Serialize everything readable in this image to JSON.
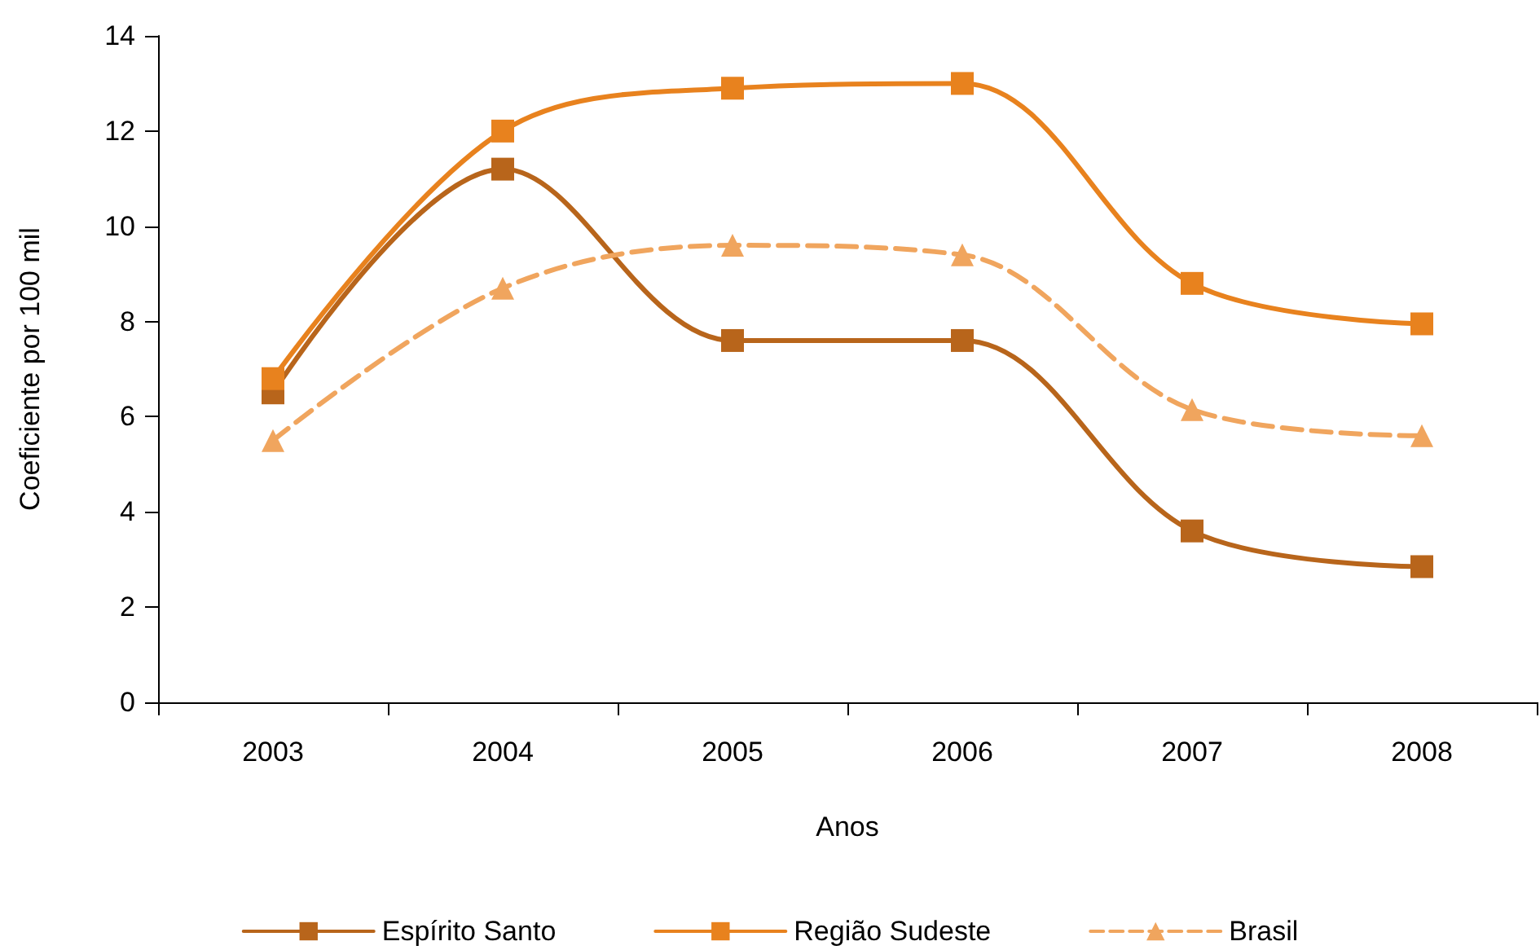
{
  "chart_data": {
    "type": "line",
    "xlabel": "Anos",
    "ylabel": "Coeficiente por 100 mil",
    "categories": [
      "2003",
      "2004",
      "2005",
      "2006",
      "2007",
      "2008"
    ],
    "series": [
      {
        "name": "Espírito Santo",
        "color": "#b8651b",
        "marker": "square",
        "line_style": "solid",
        "values": [
          6.5,
          11.2,
          7.6,
          7.6,
          3.6,
          2.85
        ]
      },
      {
        "name": "Região Sudeste",
        "color": "#e8821e",
        "marker": "square",
        "line_style": "solid",
        "values": [
          6.8,
          12.0,
          12.9,
          13.0,
          8.8,
          7.95
        ]
      },
      {
        "name": "Brasil",
        "color": "#f0a55e",
        "marker": "triangle",
        "line_style": "dashed",
        "values": [
          5.5,
          8.7,
          9.6,
          9.4,
          6.15,
          5.6
        ]
      }
    ],
    "ylim": [
      0,
      14
    ],
    "yticks": [
      0,
      2,
      4,
      6,
      8,
      10,
      12,
      14
    ],
    "grid": false,
    "legend": "bottom"
  }
}
